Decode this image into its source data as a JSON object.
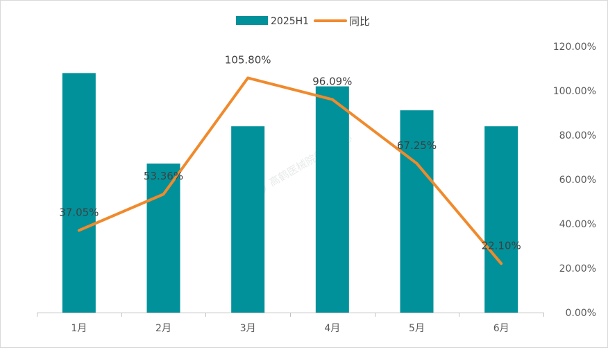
{
  "chart_data": {
    "type": "bar",
    "categories": [
      "1月",
      "2月",
      "3月",
      "4月",
      "5月",
      "6月"
    ],
    "series": [
      {
        "name": "2025H1",
        "type": "bar",
        "axis": "left",
        "color": "#00919a",
        "values": [
          4.5,
          2.8,
          3.5,
          4.25,
          3.8,
          3.5
        ]
      },
      {
        "name": "同比",
        "type": "line",
        "axis": "right",
        "color": "#f08a2c",
        "values": [
          37.05,
          53.36,
          105.8,
          96.09,
          67.25,
          22.1
        ],
        "data_labels": [
          "37.05%",
          "53.36%",
          "105.80%",
          "96.09%",
          "67.25%",
          "22.10%"
        ]
      }
    ],
    "y_right": {
      "range": [
        0,
        120
      ],
      "ticks": [
        0,
        20,
        40,
        60,
        80,
        100,
        120
      ],
      "tick_labels": [
        "0.00%",
        "20.00%",
        "40.00%",
        "60.00%",
        "80.00%",
        "100.00%",
        "120.00%"
      ]
    },
    "y_left_range": [
      0,
      5
    ],
    "legend": "top-center",
    "grid": false,
    "watermark": "高鹤医械院数据中心"
  }
}
